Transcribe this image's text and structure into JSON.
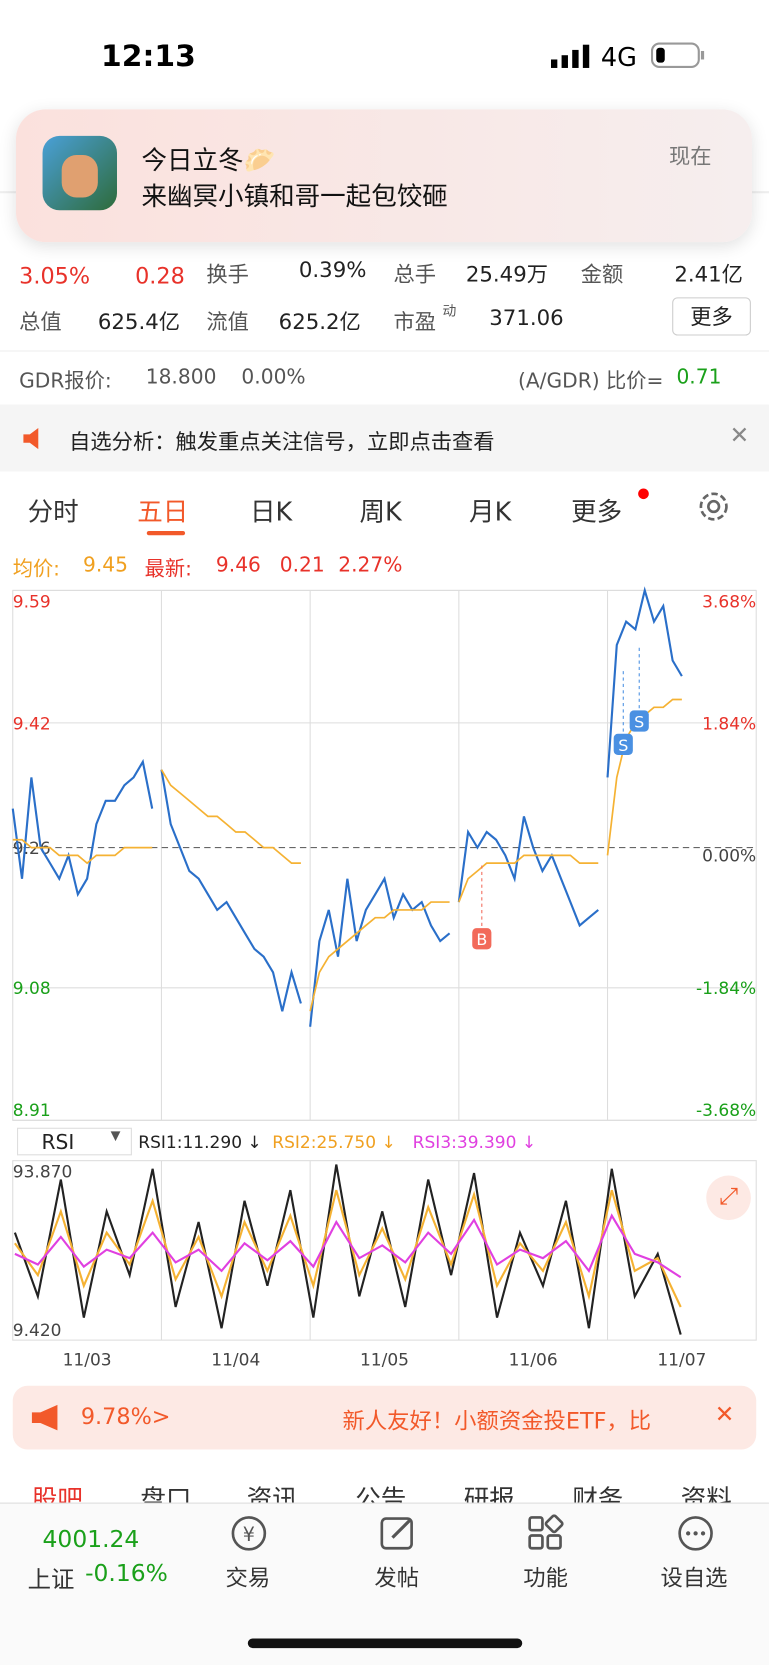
{
  "status_bar": {
    "time": "12:13",
    "network": "4G"
  },
  "notification": {
    "title": "今日立冬🥟",
    "body": "来幽冥小镇和哥一起包饺砸",
    "time": "现在"
  },
  "quote": {
    "change_pct": "3.05%",
    "change": "0.28",
    "stats": [
      {
        "label": "换手",
        "value": "0.39%"
      },
      {
        "label": "总手",
        "value": "25.49万"
      },
      {
        "label": "金额",
        "value": "2.41亿"
      },
      {
        "label": "总值",
        "value": "625.4亿"
      },
      {
        "label": "流值",
        "value": "625.2亿"
      },
      {
        "label": "市盈",
        "sup": "动",
        "value": "371.06"
      }
    ],
    "more": "更多"
  },
  "gdr": {
    "label": "GDR报价:",
    "price": "18.800",
    "change": "0.00%",
    "ratio_label": "(A/GDR) 比价=",
    "ratio": "0.71"
  },
  "alert": {
    "text": "自选分析：触发重点关注信号，立即点击查看"
  },
  "tabs": [
    "分时",
    "五日",
    "日K",
    "周K",
    "月K",
    "更多"
  ],
  "active_tab": 1,
  "chart_data": {
    "type": "line",
    "legend": {
      "avg_label": "均价:",
      "avg": "9.45",
      "last_label": "最新:",
      "last": "9.46",
      "change": "0.21",
      "change_pct": "2.27%"
    },
    "categories": [
      "11/03",
      "11/04",
      "11/05",
      "11/06",
      "11/07"
    ],
    "ylim": [
      8.91,
      9.59
    ],
    "yticks": [
      9.59,
      9.42,
      9.26,
      9.08,
      8.91
    ],
    "y2lim": [
      -3.68,
      3.68
    ],
    "y2ticks": [
      {
        "value": 3.68,
        "label": "3.68%"
      },
      {
        "value": 1.84,
        "label": "1.84%"
      },
      {
        "value": 0,
        "label": "0.00%"
      },
      {
        "value": -1.84,
        "label": "-1.84%"
      },
      {
        "value": -3.68,
        "label": "-3.68%"
      }
    ],
    "grid": true,
    "series": [
      {
        "color": "#2a6fc9",
        "values": [
          [
            9.31,
            9.22,
            9.35,
            9.26,
            9.24,
            9.22,
            9.25,
            9.2,
            9.22,
            9.29,
            9.32,
            9.32,
            9.34,
            9.35,
            9.37,
            9.31
          ],
          [
            9.36,
            9.29,
            9.26,
            9.23,
            9.22,
            9.2,
            9.18,
            9.19,
            9.17,
            9.15,
            9.13,
            9.12,
            9.1,
            9.05,
            9.1,
            9.06
          ],
          [
            9.03,
            9.14,
            9.18,
            9.12,
            9.22,
            9.14,
            9.18,
            9.2,
            9.22,
            9.17,
            9.2,
            9.18,
            9.19,
            9.16,
            9.14,
            9.15
          ],
          [
            9.19,
            9.28,
            9.26,
            9.28,
            9.27,
            9.25,
            9.22,
            9.3,
            9.26,
            9.23,
            9.25,
            9.22,
            9.19,
            9.16,
            9.17,
            9.18
          ],
          [
            9.35,
            9.52,
            9.55,
            9.54,
            9.59,
            9.55,
            9.57,
            9.5,
            9.48
          ]
        ]
      },
      {
        "color": "#f5b233",
        "values": [
          [
            9.27,
            9.27,
            9.26,
            9.26,
            9.26,
            9.25,
            9.25,
            9.25,
            9.24,
            9.25,
            9.25,
            9.25,
            9.26,
            9.26,
            9.26,
            9.26
          ],
          [
            9.36,
            9.34,
            9.33,
            9.32,
            9.31,
            9.3,
            9.3,
            9.29,
            9.28,
            9.28,
            9.27,
            9.26,
            9.26,
            9.25,
            9.24,
            9.24
          ],
          [
            9.05,
            9.1,
            9.12,
            9.13,
            9.14,
            9.15,
            9.16,
            9.17,
            9.17,
            9.18,
            9.18,
            9.18,
            9.18,
            9.19,
            9.19,
            9.19
          ],
          [
            9.19,
            9.22,
            9.23,
            9.24,
            9.24,
            9.24,
            9.24,
            9.25,
            9.25,
            9.25,
            9.25,
            9.25,
            9.25,
            9.24,
            9.24,
            9.24
          ],
          [
            9.25,
            9.35,
            9.4,
            9.42,
            9.43,
            9.44,
            9.44,
            9.45,
            9.45
          ]
        ]
      }
    ],
    "annotations": [
      "B",
      "S",
      "S"
    ]
  },
  "rsi": {
    "selector": "RSI",
    "labels": [
      "RSI1:11.290 ↓",
      "RSI2:25.750 ↓",
      "RSI3:39.390 ↓"
    ],
    "ylim": [
      9.42,
      93.87
    ],
    "yticks": [
      {
        "value": 93.87,
        "label": "93.870"
      },
      {
        "value": 9.42,
        "label": "9.420"
      }
    ],
    "series": [
      {
        "color": "#222222",
        "values": [
          60,
          30,
          85,
          20,
          70,
          40,
          90,
          25,
          65,
          15,
          75,
          35,
          80,
          20,
          92,
          30,
          70,
          25,
          85,
          40,
          88,
          20,
          60,
          35,
          75,
          15,
          90,
          30,
          50,
          12
        ]
      },
      {
        "color": "#f5b233",
        "values": [
          55,
          40,
          70,
          35,
          60,
          45,
          75,
          38,
          58,
          30,
          65,
          42,
          68,
          35,
          80,
          40,
          62,
          38,
          72,
          45,
          78,
          35,
          55,
          42,
          65,
          30,
          80,
          42,
          48,
          25
        ]
      },
      {
        "color": "#e040e0",
        "values": [
          50,
          45,
          58,
          44,
          52,
          48,
          60,
          46,
          52,
          42,
          55,
          47,
          56,
          44,
          65,
          48,
          54,
          46,
          60,
          50,
          66,
          45,
          52,
          48,
          56,
          42,
          68,
          50,
          46,
          39
        ]
      }
    ]
  },
  "promo": {
    "rate": "9.78%>",
    "text": "新人友好！小额资金投ETF，比"
  },
  "section_tabs": [
    "股吧",
    "盘口",
    "资讯",
    "公告",
    "研报",
    "财务",
    "资料"
  ],
  "bottom_nav": {
    "index_value": "4001.24",
    "index_name": "上证",
    "index_change": "-0.16%",
    "items": [
      "交易",
      "发帖",
      "功能",
      "设自选"
    ]
  }
}
